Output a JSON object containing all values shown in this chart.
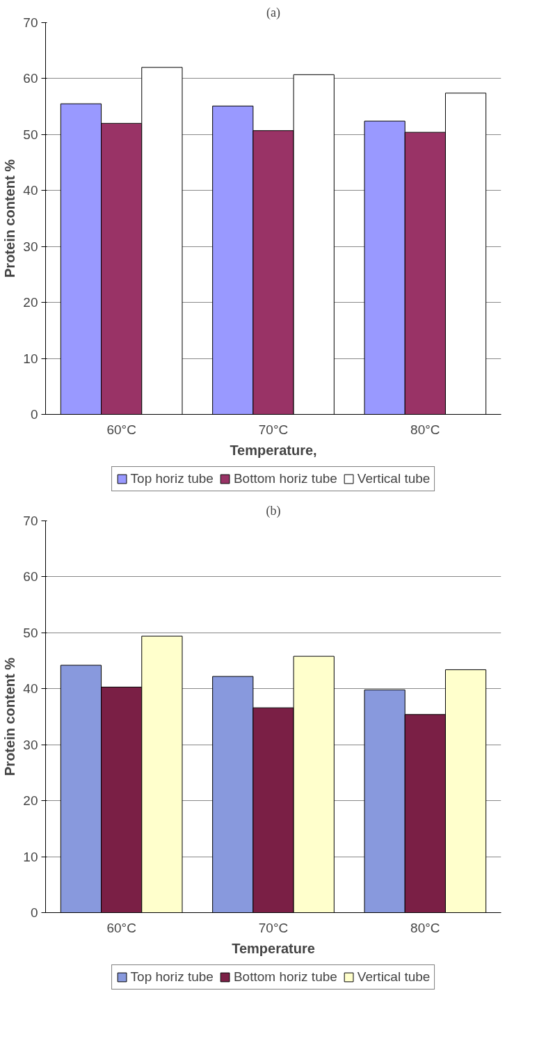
{
  "chart_data": [
    {
      "type": "bar",
      "title": "(a)",
      "xlabel": "Temperature,",
      "ylabel": "Protein content %",
      "categories": [
        "60°C",
        "70°C",
        "80°C"
      ],
      "series": [
        {
          "name": "Top horiz tube",
          "color": "#9999ff",
          "values": [
            55.5,
            55.1,
            52.4
          ]
        },
        {
          "name": "Bottom horiz tube",
          "color": "#993366",
          "values": [
            52.0,
            50.7,
            50.4
          ]
        },
        {
          "name": "Vertical tube",
          "color": "#ffffff",
          "values": [
            62.0,
            60.7,
            57.4
          ]
        }
      ],
      "ylim": [
        0,
        70
      ],
      "yticks": [
        0,
        10,
        20,
        30,
        40,
        50,
        60,
        70
      ],
      "grid": "y",
      "legend": "bottom"
    },
    {
      "type": "bar",
      "title": "(b)",
      "xlabel": "Temperature",
      "ylabel": "Protein content %",
      "categories": [
        "60°C",
        "70°C",
        "80°C"
      ],
      "series": [
        {
          "name": "Top horiz tube",
          "color": "#8899dd",
          "values": [
            44.2,
            42.2,
            39.8
          ]
        },
        {
          "name": "Bottom horiz tube",
          "color": "#7a1f45",
          "values": [
            40.3,
            36.6,
            35.4
          ]
        },
        {
          "name": "Vertical tube",
          "color": "#ffffcc",
          "values": [
            49.4,
            45.8,
            43.4
          ]
        }
      ],
      "ylim": [
        0,
        70
      ],
      "yticks": [
        0,
        10,
        20,
        30,
        40,
        50,
        60,
        70
      ],
      "grid": "y",
      "legend": "bottom"
    }
  ]
}
